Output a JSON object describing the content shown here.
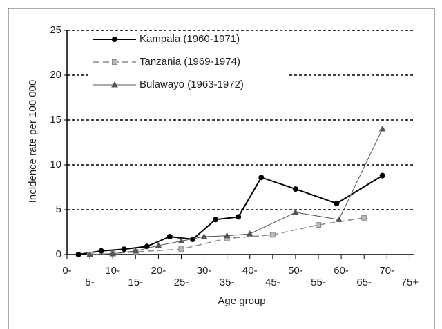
{
  "chart_data": {
    "type": "line",
    "ylabel": "Incidence rate per 100 000",
    "xlabel": "Age group",
    "xlim": [
      0,
      76
    ],
    "ylim": [
      0,
      25
    ],
    "yticks": [
      0,
      5,
      10,
      15,
      20,
      25
    ],
    "xticks": [
      {
        "value": 0,
        "label": "0-"
      },
      {
        "value": 5,
        "label": "5-"
      },
      {
        "value": 10,
        "label": "10-"
      },
      {
        "value": 15,
        "label": "15-"
      },
      {
        "value": 20,
        "label": "20-"
      },
      {
        "value": 25,
        "label": "25-"
      },
      {
        "value": 30,
        "label": "30-"
      },
      {
        "value": 35,
        "label": "35-"
      },
      {
        "value": 40,
        "label": "40-"
      },
      {
        "value": 45,
        "label": "45-"
      },
      {
        "value": 50,
        "label": "50-"
      },
      {
        "value": 55,
        "label": "55-"
      },
      {
        "value": 60,
        "label": "60-"
      },
      {
        "value": 65,
        "label": "65-"
      },
      {
        "value": 70,
        "label": "70-"
      },
      {
        "value": 75,
        "label": "75+"
      }
    ],
    "grid": true,
    "legend": "upper left",
    "series": [
      {
        "name": "Kampala (1960-1971)",
        "color": "#000000",
        "linestyle": "solid",
        "marker": "circle",
        "x": [
          2.5,
          7.5,
          12.5,
          17.5,
          22.5,
          27.5,
          32.5,
          37.5,
          42.5,
          50,
          59,
          69
        ],
        "values": [
          0,
          0.4,
          0.6,
          0.9,
          2.0,
          1.7,
          3.9,
          4.2,
          8.6,
          7.3,
          5.7,
          8.8
        ]
      },
      {
        "name": "Tanzania (1969-1974)",
        "color": "#8a8a8a",
        "linestyle": "dashed",
        "marker": "square",
        "x": [
          5,
          10,
          15,
          25,
          35,
          45,
          55,
          65
        ],
        "values": [
          0,
          0.1,
          0.3,
          0.6,
          1.8,
          2.2,
          3.3,
          4.1
        ]
      },
      {
        "name": "Bulawayo (1963-1972)",
        "color": "#555555",
        "linestyle": "thin",
        "marker": "triangle",
        "x": [
          5,
          10,
          15,
          20,
          25,
          30,
          35,
          40,
          50,
          59.5,
          69
        ],
        "values": [
          0,
          0.1,
          0.4,
          1.0,
          1.5,
          2.0,
          2.1,
          2.3,
          4.7,
          3.9,
          14.0
        ]
      }
    ]
  }
}
